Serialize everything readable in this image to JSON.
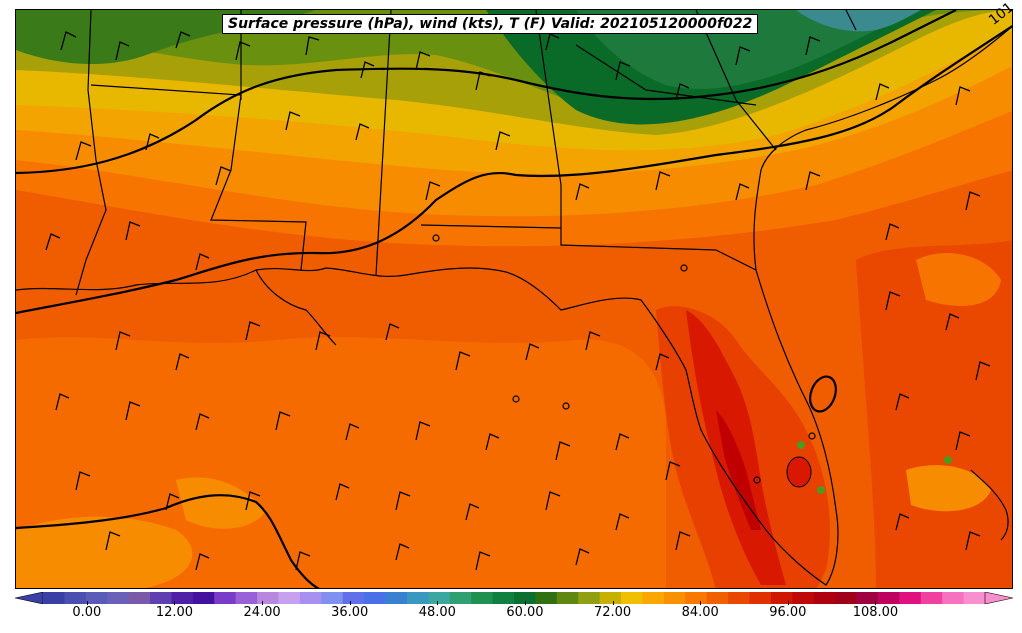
{
  "title": "Surface pressure (hPa), wind (kts), T (F) Valid: 202105120000f022",
  "isobar_label": "101",
  "colorbar": {
    "ticks": [
      "0.00",
      "12.00",
      "24.00",
      "36.00",
      "48.00",
      "60.00",
      "72.00",
      "84.00",
      "96.00",
      "108.00"
    ],
    "tick_values": [
      0,
      12,
      24,
      36,
      48,
      60,
      72,
      84,
      96,
      108
    ],
    "min": -6,
    "max": 123,
    "step": 3,
    "colors": [
      "#3a3fa6",
      "#4a4fb0",
      "#5a5ab8",
      "#6a60b8",
      "#7a5aa8",
      "#6040b0",
      "#5020a8",
      "#4410a0",
      "#7a3cc8",
      "#9a60d8",
      "#b888e0",
      "#c8a0f0",
      "#a890f0",
      "#8090f0",
      "#6070e8",
      "#4a70e8",
      "#3a80d0",
      "#3a98c0",
      "#3aa8a0",
      "#30a070",
      "#209050",
      "#108040",
      "#0a7030",
      "#307010",
      "#608810",
      "#90a010",
      "#c8b000",
      "#f0c000",
      "#f8a800",
      "#f89000",
      "#f87800",
      "#f06000",
      "#e84800",
      "#e03000",
      "#d01800",
      "#c00808",
      "#b00010",
      "#a00018",
      "#a00040",
      "#c00060",
      "#e01080",
      "#f040a0",
      "#f870c0",
      "#f890d0"
    ]
  },
  "map": {
    "colors": {
      "t60": "#3a8a90",
      "t63": "#1e7a3c",
      "t66": "#0a6a28",
      "t69": "#2a7a1a",
      "t72": "#6a9010",
      "t75": "#a8a008",
      "t78": "#e8b800",
      "t81": "#f4a400",
      "t84": "#f88c00",
      "t87": "#f87400",
      "t90": "#f05c00",
      "t93": "#e84000",
      "t96": "#d81800",
      "t99": "#c00000",
      "lake_green": "#4a9a20"
    }
  }
}
